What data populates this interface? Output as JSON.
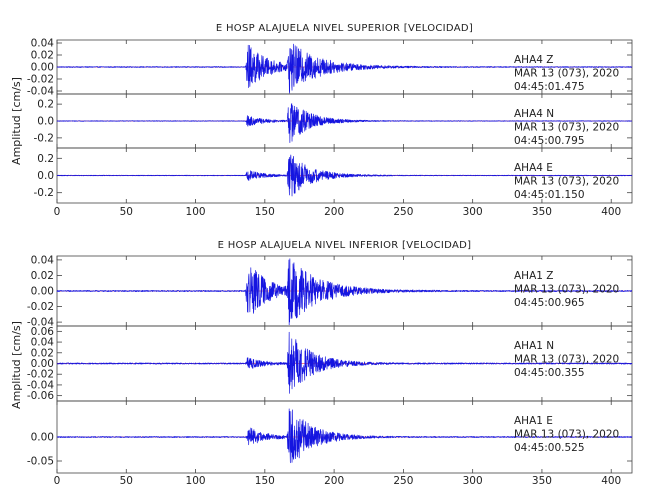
{
  "chart_data": [
    {
      "type": "line",
      "title": "E HOSP ALAJUELA NIVEL SUPERIOR [VELOCIDAD]",
      "ylabel": "Amplitud [cm/s]",
      "xlabel": "",
      "xlim": [
        0,
        415
      ],
      "x_ticks": [
        "0",
        "50",
        "100",
        "150",
        "200",
        "250",
        "300",
        "350",
        "400"
      ],
      "colors": {
        "trace": "#1515e0",
        "zero_line": "#ff0000",
        "axes": "#444444"
      },
      "series": [
        {
          "name": "AHA4 Z",
          "ylim": [
            -0.045,
            0.045
          ],
          "y_ticks": [
            "0.04",
            "0.02",
            "0.00",
            "-0.02",
            "-0.04"
          ],
          "y_tick_values": [
            0.04,
            0.02,
            0.0,
            -0.02,
            -0.04
          ],
          "annotation": [
            "AHA4   Z",
            "MAR 13 (073), 2020",
            "04:45:01.475"
          ],
          "noise": 0.0008,
          "events": [
            {
              "t": 136,
              "amp": 0.045,
              "decay": 14
            },
            {
              "t": 166,
              "amp": 0.042,
              "decay": 22
            }
          ]
        },
        {
          "name": "AHA4 N",
          "ylim": [
            -0.32,
            0.32
          ],
          "y_ticks": [
            "0.2",
            "0.0",
            "-0.2"
          ],
          "y_tick_values": [
            0.2,
            0.0,
            -0.2
          ],
          "annotation": [
            "AHA4   N",
            "MAR 13 (073), 2020",
            "04:45:00.795"
          ],
          "noise": 0.004,
          "events": [
            {
              "t": 136,
              "amp": 0.07,
              "decay": 12
            },
            {
              "t": 166,
              "amp": 0.31,
              "decay": 14
            }
          ]
        },
        {
          "name": "AHA4 E",
          "ylim": [
            -0.32,
            0.32
          ],
          "y_ticks": [
            "0.2",
            "0.0",
            "-0.2"
          ],
          "y_tick_values": [
            0.2,
            0.0,
            -0.2
          ],
          "annotation": [
            "AHA4   E",
            "MAR 13 (073), 2020",
            "04:45:01.150"
          ],
          "noise": 0.004,
          "events": [
            {
              "t": 136,
              "amp": 0.07,
              "decay": 12
            },
            {
              "t": 166,
              "amp": 0.3,
              "decay": 15
            }
          ]
        }
      ]
    },
    {
      "type": "line",
      "title": "E HOSP ALAJUELA NIVEL INFERIOR [VELOCIDAD]",
      "ylabel": "Amplitud [cm/s]",
      "xlabel": "",
      "xlim": [
        0,
        415
      ],
      "x_ticks": [
        "0",
        "50",
        "100",
        "150",
        "200",
        "250",
        "300",
        "350",
        "400"
      ],
      "colors": {
        "trace": "#1515e0",
        "zero_line": "#ff0000",
        "axes": "#444444"
      },
      "series": [
        {
          "name": "AHA1 Z",
          "ylim": [
            -0.045,
            0.045
          ],
          "y_ticks": [
            "0.04",
            "0.02",
            "0.00",
            "-0.02",
            "-0.04"
          ],
          "y_tick_values": [
            0.04,
            0.02,
            0.0,
            -0.02,
            -0.04
          ],
          "annotation": [
            "AHA1   Z",
            "MAR 13 (073), 2020",
            "04:45:00.965"
          ],
          "noise": 0.0008,
          "events": [
            {
              "t": 136,
              "amp": 0.045,
              "decay": 14
            },
            {
              "t": 166,
              "amp": 0.042,
              "decay": 22
            }
          ]
        },
        {
          "name": "AHA1 N",
          "ylim": [
            -0.07,
            0.07
          ],
          "y_ticks": [
            "0.06",
            "0.04",
            "0.02",
            "0.00",
            "-0.02",
            "-0.04",
            "-0.06"
          ],
          "y_tick_values": [
            0.06,
            0.04,
            0.02,
            0.0,
            -0.02,
            -0.04,
            -0.06
          ],
          "annotation": [
            "AHA1   N",
            "MAR 13 (073), 2020",
            "04:45:00.355"
          ],
          "noise": 0.0012,
          "events": [
            {
              "t": 136,
              "amp": 0.012,
              "decay": 12
            },
            {
              "t": 166,
              "amp": 0.066,
              "decay": 16
            }
          ]
        },
        {
          "name": "AHA1 E",
          "ylim": [
            -0.075,
            0.075
          ],
          "y_ticks": [
            "0.00",
            "-0.05"
          ],
          "y_tick_values": [
            0.0,
            -0.05
          ],
          "annotation": [
            "AHA1   E",
            "MAR 13 (073), 2020",
            "04:45:00.525"
          ],
          "noise": 0.0012,
          "events": [
            {
              "t": 136,
              "amp": 0.025,
              "decay": 12
            },
            {
              "t": 166,
              "amp": 0.072,
              "decay": 16
            }
          ]
        }
      ]
    }
  ]
}
